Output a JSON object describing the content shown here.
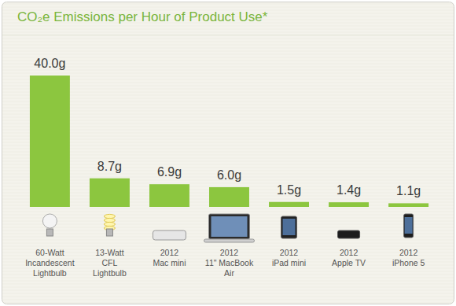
{
  "chart_data": {
    "type": "bar",
    "title": "CO₂e Emissions per Hour of Product Use*",
    "categories": [
      "60-Watt\nIncandescent\nLightbulb",
      "13-Watt\nCFL\nLightbulb",
      "2012\nMac mini",
      "2012\n11\" MacBook\nAir",
      "2012\niPad mini",
      "2012\nApple TV",
      "2012\niPhone 5"
    ],
    "values": [
      40.0,
      8.7,
      6.9,
      6.0,
      1.5,
      1.4,
      1.1
    ],
    "value_labels": [
      "40.0g",
      "8.7g",
      "6.9g",
      "6.0g",
      "1.5g",
      "1.4g",
      "1.1g"
    ],
    "color": "#8cc63f",
    "ylim": [
      0,
      40
    ],
    "data_labels": true,
    "tick_labels": false
  }
}
